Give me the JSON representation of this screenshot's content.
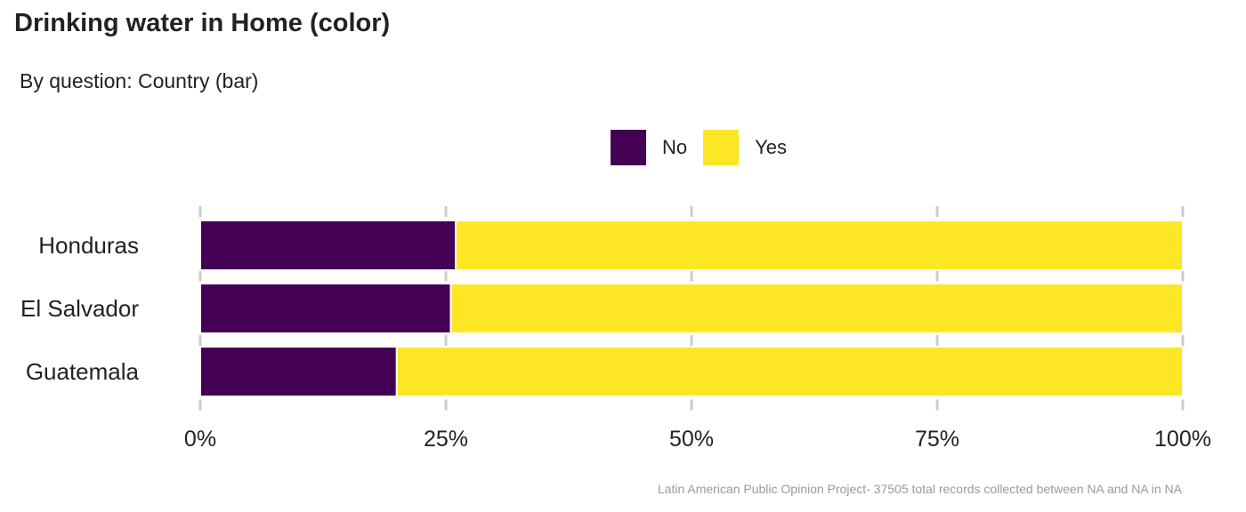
{
  "title": "Drinking water in Home (color)",
  "subtitle": "By question: Country (bar)",
  "caption": "Latin American Public Opinion Project- 37505 total records collected between NA and NA in  NA",
  "colors": {
    "No": "#440154",
    "Yes": "#FDE725",
    "grid": "#cccccc"
  },
  "chart_data": {
    "type": "bar",
    "orientation": "horizontal",
    "stacked": true,
    "title": "Drinking water in Home (color)",
    "subtitle": "By question: Country (bar)",
    "categories": [
      "Honduras",
      "El Salvador",
      "Guatemala"
    ],
    "series": [
      {
        "name": "No",
        "values": [
          26,
          25.5,
          20
        ]
      },
      {
        "name": "Yes",
        "values": [
          74,
          74.5,
          80
        ]
      }
    ],
    "xlim": [
      0,
      100
    ],
    "x_ticks": [
      "0%",
      "25%",
      "50%",
      "75%",
      "100%"
    ],
    "legend_position": "top",
    "grid": true
  }
}
